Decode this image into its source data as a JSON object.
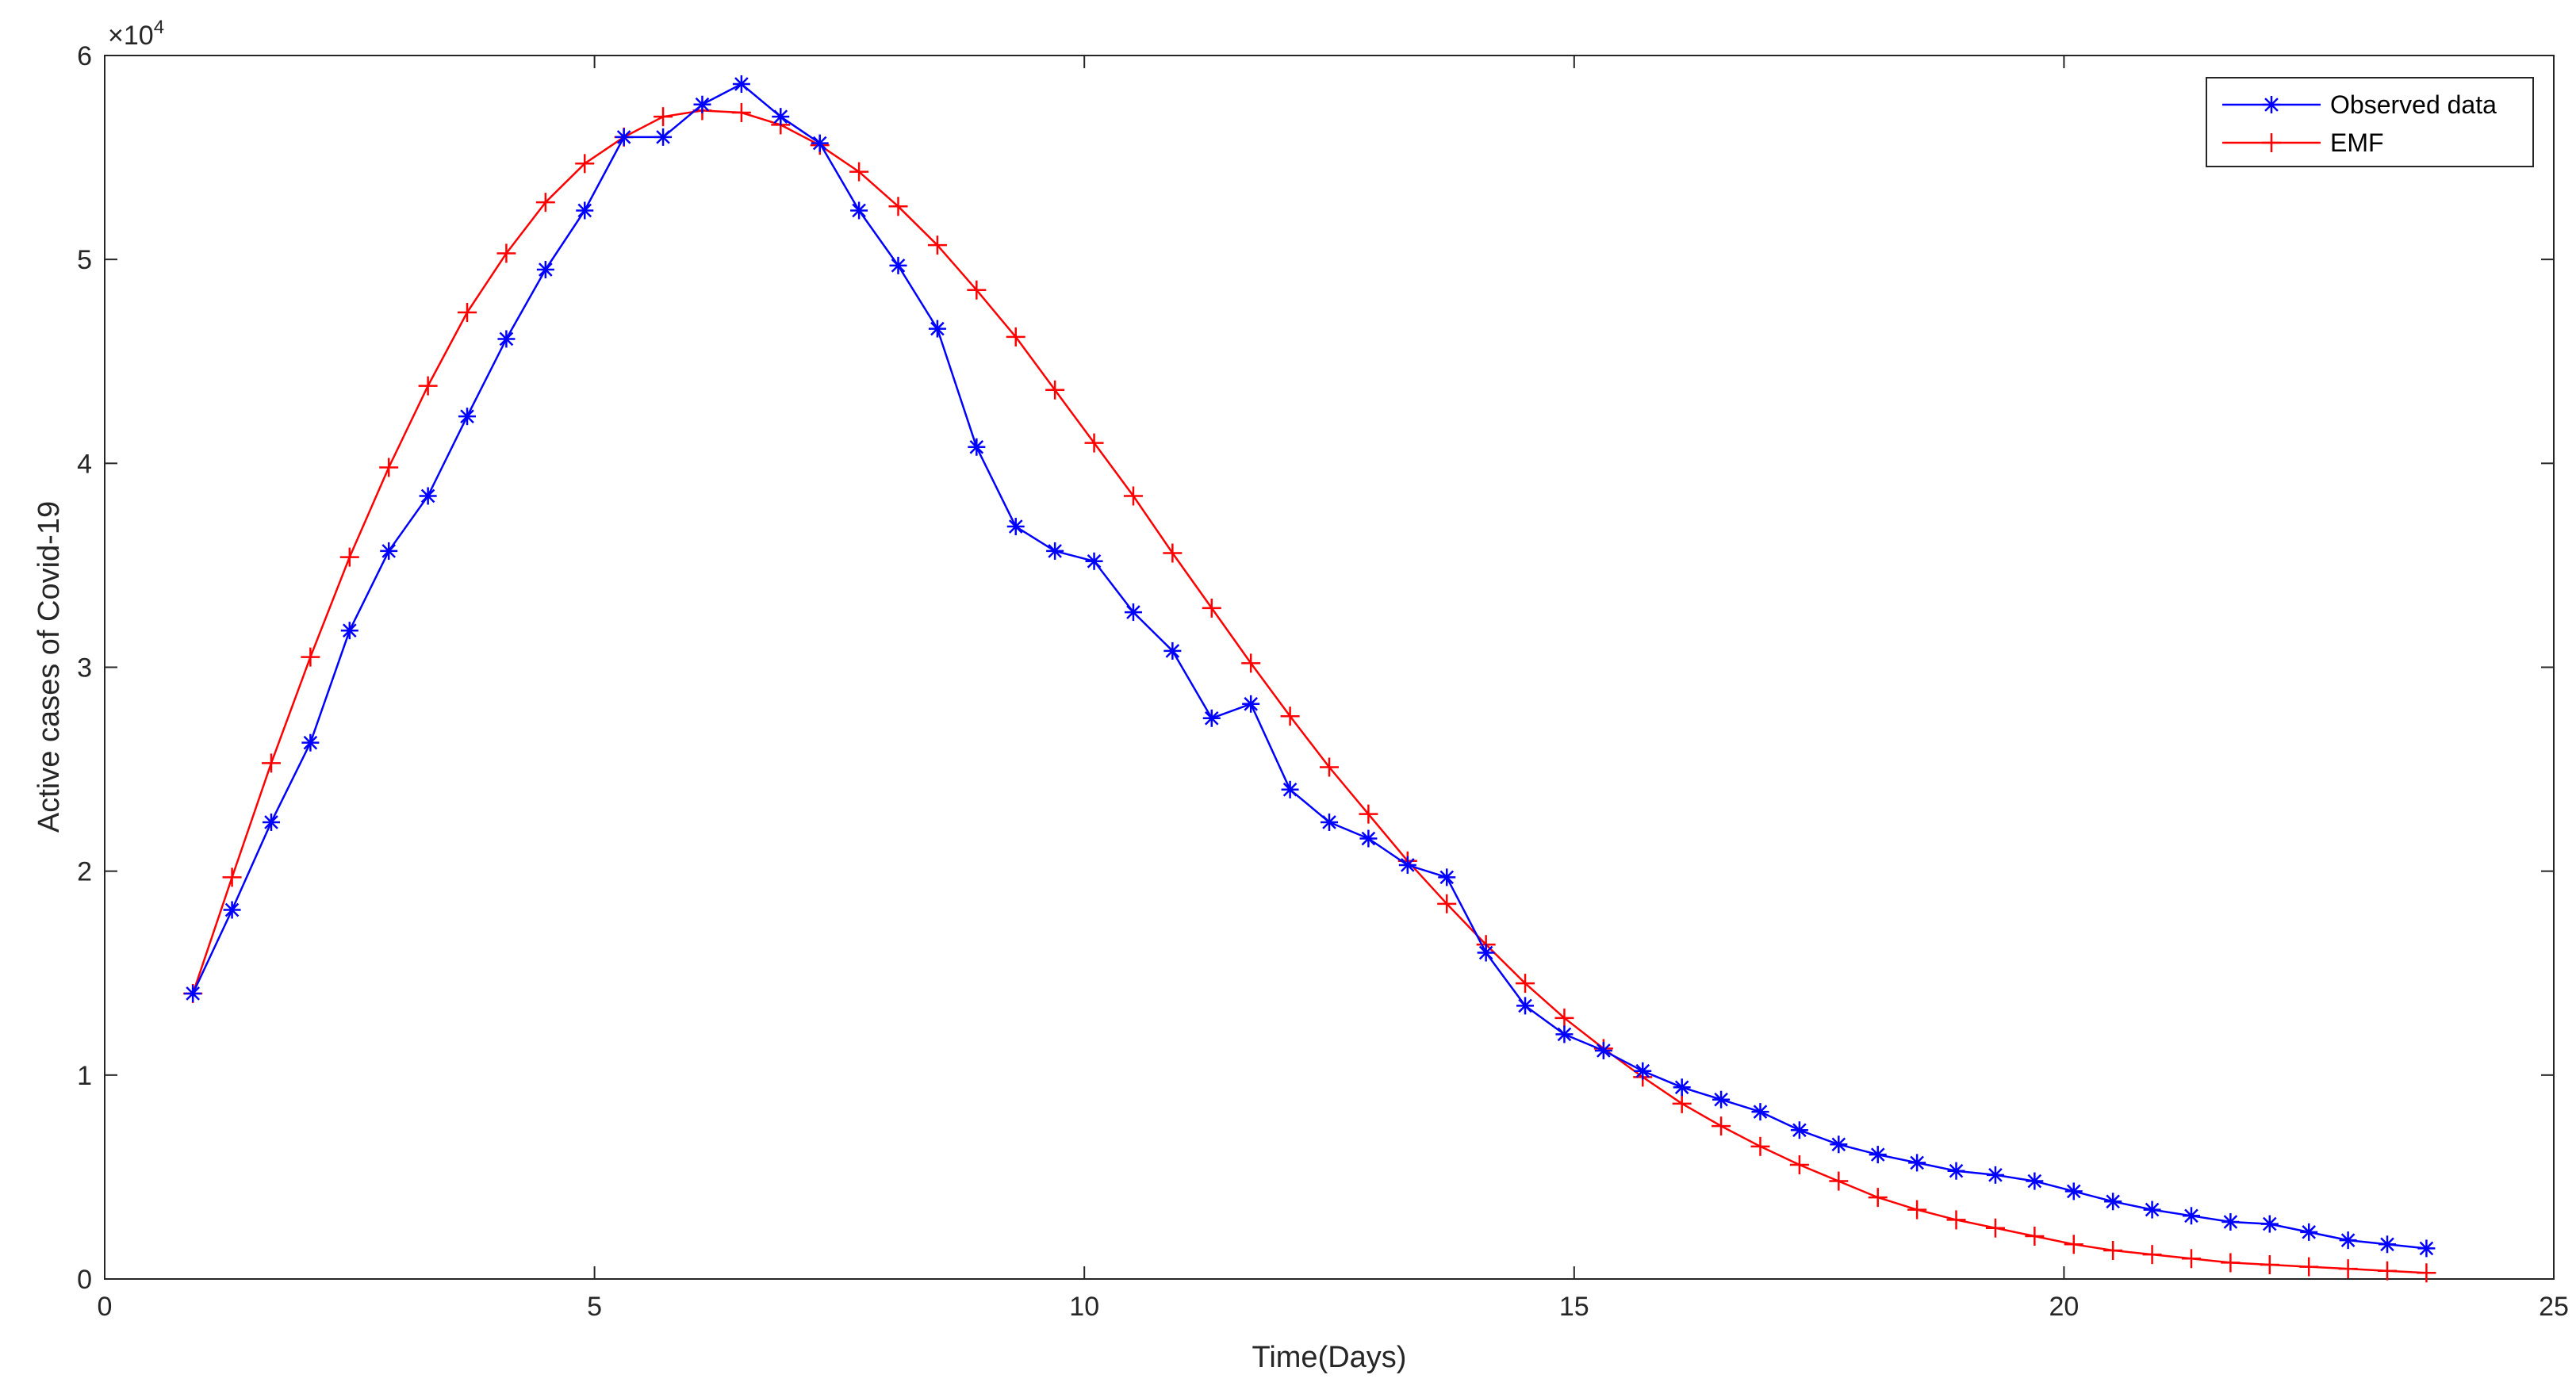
{
  "chart_data": {
    "type": "line",
    "title": "",
    "xlabel": "Time(Days)",
    "ylabel": "Active cases of Covid-19",
    "xlim": [
      0,
      25
    ],
    "ylim": [
      0,
      60000
    ],
    "x_ticks": [
      "0",
      "5",
      "10",
      "15",
      "20",
      "25"
    ],
    "y_ticks": [
      "0",
      "1",
      "2",
      "3",
      "4",
      "5",
      "6"
    ],
    "y_exponent_base": "×10",
    "y_exponent_power": "4",
    "grid": false,
    "legend_position": "top-right",
    "x": [
      0.9,
      1.3,
      1.7,
      2.1,
      2.5,
      2.9,
      3.3,
      3.7,
      4.1,
      4.5,
      4.9,
      5.3,
      5.7,
      6.1,
      6.5,
      6.9,
      7.3,
      7.7,
      8.1,
      8.5,
      8.9,
      9.3,
      9.7,
      10.1,
      10.5,
      10.9,
      11.3,
      11.7,
      12.1,
      12.5,
      12.9,
      13.3,
      13.7,
      14.1,
      14.5,
      14.9,
      15.3,
      15.7,
      16.1,
      16.5,
      16.9,
      17.3,
      17.7,
      18.1,
      18.5,
      18.9,
      19.3,
      19.7,
      20.1,
      20.5,
      20.9,
      21.3,
      21.7,
      22.1,
      22.5,
      22.9,
      23.3,
      23.7
    ],
    "series": [
      {
        "name": "Observed data",
        "color": "#0000ff",
        "marker": "asterisk",
        "values": [
          14000,
          18100,
          22400,
          26300,
          31800,
          35700,
          38400,
          42300,
          46100,
          49500,
          52400,
          56000,
          56000,
          57600,
          58600,
          57000,
          55700,
          52400,
          49700,
          46600,
          40800,
          36900,
          35700,
          35200,
          32700,
          30800,
          27500,
          28200,
          24000,
          22400,
          21600,
          20300,
          19700,
          16000,
          13400,
          12000,
          11200,
          10200,
          9400,
          8800,
          8200,
          7300,
          6600,
          6100,
          5700,
          5300,
          5100,
          4800,
          4300,
          3800,
          3400,
          3100,
          2800,
          2700,
          2300,
          1900,
          1700,
          1500
        ]
      },
      {
        "name": "EMF",
        "color": "#ff0000",
        "marker": "plus",
        "values": [
          14000,
          19700,
          25300,
          30500,
          35400,
          39800,
          43800,
          47400,
          50300,
          52800,
          54700,
          56000,
          57000,
          57300,
          57200,
          56600,
          55600,
          54300,
          52600,
          50700,
          48500,
          46200,
          43600,
          41000,
          38400,
          35600,
          32900,
          30200,
          27600,
          25100,
          22800,
          20500,
          18400,
          16400,
          14500,
          12800,
          11300,
          9900,
          8600,
          7500,
          6500,
          5600,
          4800,
          4000,
          3400,
          2900,
          2500,
          2100,
          1700,
          1400,
          1200,
          1000,
          800,
          700,
          600,
          500,
          400,
          300
        ]
      }
    ]
  }
}
